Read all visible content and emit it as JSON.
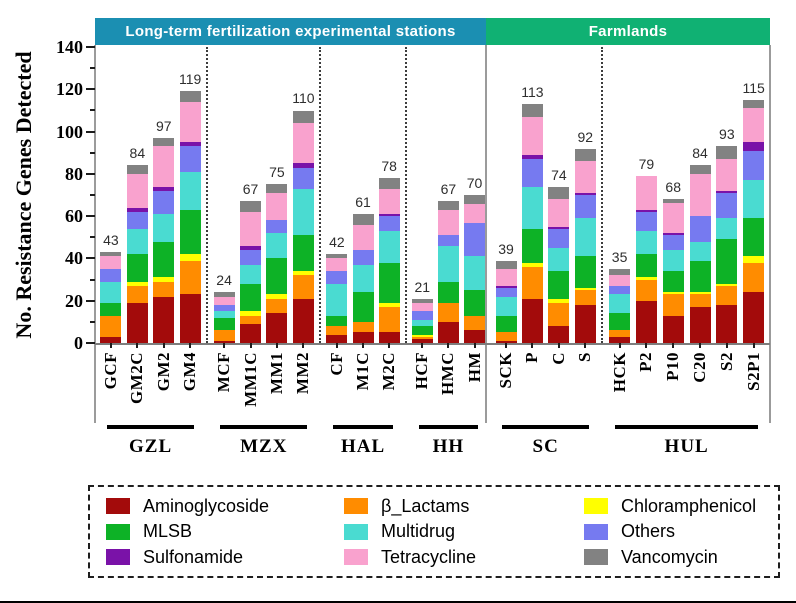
{
  "chart_data": {
    "type": "bar",
    "subtype": "stacked",
    "ylabel": "No. Resistance Genes Detected",
    "ylim": [
      0,
      140
    ],
    "yticks": [
      0,
      20,
      40,
      60,
      80,
      100,
      120,
      140
    ],
    "grid": false,
    "stack_order": [
      "Aminoglycoside",
      "β_Lactams",
      "Chloramphenicol",
      "MLSB",
      "Multidrug",
      "Others",
      "Sulfonamide",
      "Tetracycline",
      "Vancomycin"
    ],
    "series_colors": {
      "Aminoglycoside": "#A30B0B",
      "β_Lactams": "#FF8C00",
      "Chloramphenicol": "#FFFF00",
      "MLSB": "#0DB226",
      "Multidrug": "#4ADBD1",
      "Others": "#767AF0",
      "Sulfonamide": "#7A12A8",
      "Tetracycline": "#F9A2CE",
      "Vancomycin": "#828282"
    },
    "banners": [
      {
        "label": "Long-term fertilization experimental stations",
        "color": "#1B8FB2",
        "groups": [
          "GZL",
          "MZX",
          "HAL",
          "HH"
        ]
      },
      {
        "label": "Farmlands",
        "color": "#10B173",
        "groups": [
          "SC",
          "HUL"
        ]
      }
    ],
    "groups": [
      {
        "name": "GZL",
        "separator_after": "dotted",
        "bars": [
          {
            "label": "GCF",
            "total": 43,
            "values": [
              3,
              10,
              0,
              6,
              10,
              6,
              0,
              6,
              2
            ]
          },
          {
            "label": "GM2C",
            "total": 84,
            "values": [
              19,
              8,
              2,
              13,
              12,
              8,
              2,
              16,
              4
            ]
          },
          {
            "label": "GM2",
            "total": 97,
            "values": [
              22,
              7,
              2,
              17,
              13,
              11,
              2,
              19,
              4
            ]
          },
          {
            "label": "GM4",
            "total": 119,
            "values": [
              23,
              16,
              3,
              21,
              18,
              12,
              2,
              19,
              5
            ]
          }
        ]
      },
      {
        "name": "MZX",
        "separator_after": "dotted",
        "bars": [
          {
            "label": "MCF",
            "total": 24,
            "values": [
              1,
              5,
              0,
              6,
              3,
              3,
              0,
              4,
              2
            ]
          },
          {
            "label": "MM1C",
            "total": 67,
            "values": [
              9,
              4,
              2,
              13,
              9,
              7,
              2,
              16,
              5
            ]
          },
          {
            "label": "MM1",
            "total": 75,
            "values": [
              14,
              7,
              2,
              17,
              12,
              6,
              0,
              13,
              4
            ]
          },
          {
            "label": "MM2",
            "total": 110,
            "values": [
              21,
              11,
              2,
              17,
              22,
              10,
              2,
              19,
              6
            ]
          }
        ]
      },
      {
        "name": "HAL",
        "separator_after": "dotted",
        "bars": [
          {
            "label": "CF",
            "total": 42,
            "values": [
              4,
              4,
              0,
              5,
              15,
              6,
              0,
              6,
              2
            ]
          },
          {
            "label": "M1C",
            "total": 61,
            "values": [
              5,
              5,
              0,
              14,
              13,
              7,
              0,
              12,
              5
            ]
          },
          {
            "label": "M2C",
            "total": 78,
            "values": [
              5,
              12,
              2,
              19,
              15,
              7,
              1,
              12,
              5
            ]
          }
        ]
      },
      {
        "name": "HH",
        "separator_after": "solid",
        "bars": [
          {
            "label": "HCF",
            "total": 21,
            "values": [
              2,
              1,
              1,
              4,
              3,
              4,
              0,
              4,
              2
            ]
          },
          {
            "label": "HMC",
            "total": 67,
            "values": [
              10,
              9,
              0,
              10,
              17,
              5,
              0,
              12,
              4
            ]
          },
          {
            "label": "HM",
            "total": 70,
            "values": [
              6,
              7,
              0,
              12,
              16,
              16,
              0,
              9,
              4
            ]
          }
        ]
      },
      {
        "name": "SC",
        "separator_after": "dotted",
        "bars": [
          {
            "label": "SCK",
            "total": 39,
            "values": [
              1,
              4,
              0,
              8,
              9,
              4,
              1,
              8,
              4
            ]
          },
          {
            "label": "P",
            "total": 113,
            "values": [
              21,
              15,
              2,
              16,
              20,
              13,
              2,
              18,
              6
            ]
          },
          {
            "label": "C",
            "total": 74,
            "values": [
              8,
              11,
              2,
              13,
              11,
              9,
              1,
              13,
              6
            ]
          },
          {
            "label": "S",
            "total": 92,
            "values": [
              18,
              7,
              1,
              15,
              18,
              11,
              1,
              15,
              6
            ]
          }
        ]
      },
      {
        "name": "HUL",
        "separator_after": null,
        "bars": [
          {
            "label": "HCK",
            "total": 35,
            "values": [
              3,
              3,
              0,
              8,
              9,
              4,
              0,
              5,
              3
            ]
          },
          {
            "label": "P2",
            "total": 79,
            "values": [
              20,
              10,
              1,
              11,
              11,
              9,
              1,
              16,
              0
            ]
          },
          {
            "label": "P10",
            "total": 68,
            "values": [
              13,
              10,
              1,
              10,
              10,
              7,
              1,
              14,
              2
            ]
          },
          {
            "label": "C20",
            "total": 84,
            "values": [
              17,
              6,
              1,
              15,
              9,
              12,
              0,
              20,
              4
            ]
          },
          {
            "label": "S2",
            "total": 93,
            "values": [
              18,
              9,
              1,
              21,
              10,
              12,
              1,
              15,
              6
            ]
          },
          {
            "label": "S2P1",
            "total": 115,
            "values": [
              24,
              14,
              3,
              18,
              18,
              14,
              4,
              16,
              4
            ]
          }
        ]
      }
    ]
  },
  "legend": {
    "items": [
      {
        "label": "Aminoglycoside",
        "color": "#A30B0B"
      },
      {
        "label": "β_Lactams",
        "color": "#FF8C00"
      },
      {
        "label": "Chloramphenicol",
        "color": "#FFFF00"
      },
      {
        "label": "MLSB",
        "color": "#0DB226"
      },
      {
        "label": "Multidrug",
        "color": "#4ADBD1"
      },
      {
        "label": "Others",
        "color": "#767AF0"
      },
      {
        "label": "Sulfonamide",
        "color": "#7A12A8"
      },
      {
        "label": "Tetracycline",
        "color": "#F9A2CE"
      },
      {
        "label": "Vancomycin",
        "color": "#828282"
      }
    ]
  }
}
